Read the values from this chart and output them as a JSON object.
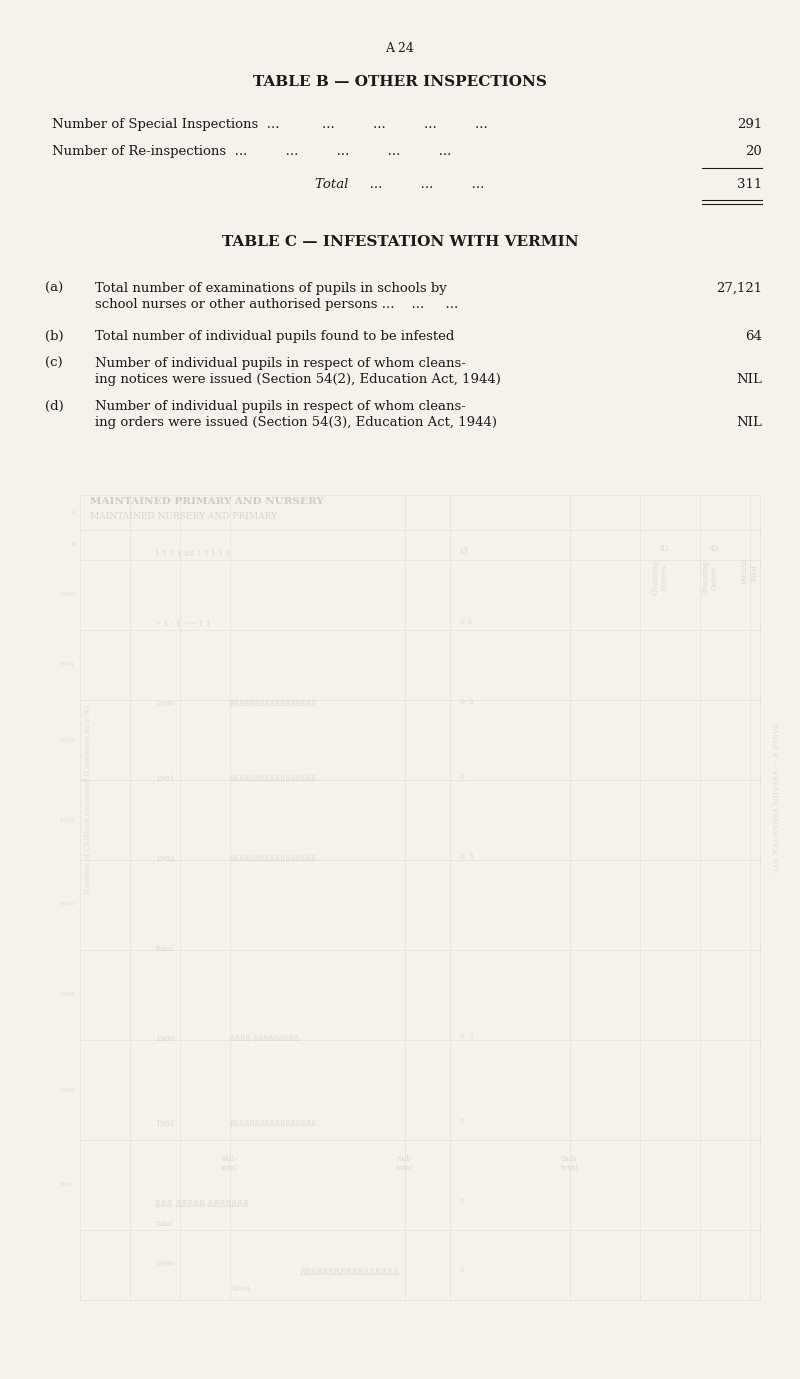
{
  "page_header": "A 24",
  "table_b_title": "TABLE B — OTHER INSPECTIONS",
  "table_b_rows": [
    {
      "label": "Number of Special Inspections",
      "dots": "  ...          ...         ...         ...         ...",
      "value": "291"
    },
    {
      "label": "Number of Re-inspections",
      "dots": "  ...         ...         ...         ...         ...",
      "value": "20"
    }
  ],
  "table_b_total_label": "Total",
  "table_b_total_dots": "  ...         ...         ...",
  "table_b_total_value": "311",
  "table_c_title": "TABLE C — INFESTATION WITH VERMIN",
  "table_c_rows": [
    {
      "letter": "(a)",
      "text_line1": "Total number of examinations of pupils in schools by",
      "text_line2": "school nurses or other authorised persons ...    ...     ...",
      "value": "27,121",
      "value_align": "top"
    },
    {
      "letter": "(b)",
      "text_line1": "Total number of individual pupils found to be infested",
      "text_line2": "",
      "value": "64",
      "value_align": "top"
    },
    {
      "letter": "(c)",
      "text_line1": "Number of individual pupils in respect of whom cleans-",
      "text_line2": "ing notices were issued (Section 54(2), Education Act, 1944)",
      "value": "NIL",
      "value_align": "bottom"
    },
    {
      "letter": "(d)",
      "text_line1": "Number of individual pupils in respect of whom cleans-",
      "text_line2": "ing orders were issued (Section 54(3), Education Act, 1944)",
      "value": "NIL",
      "value_align": "bottom"
    }
  ],
  "bg_color": "#f5f2eb",
  "text_color": "#1a1a1a",
  "ghost_color": "#c8c0b0",
  "font_size_header": 9,
  "font_size_title": 11,
  "font_size_body": 9.5,
  "fig_width": 8.0,
  "fig_height": 13.79,
  "dpi": 100
}
